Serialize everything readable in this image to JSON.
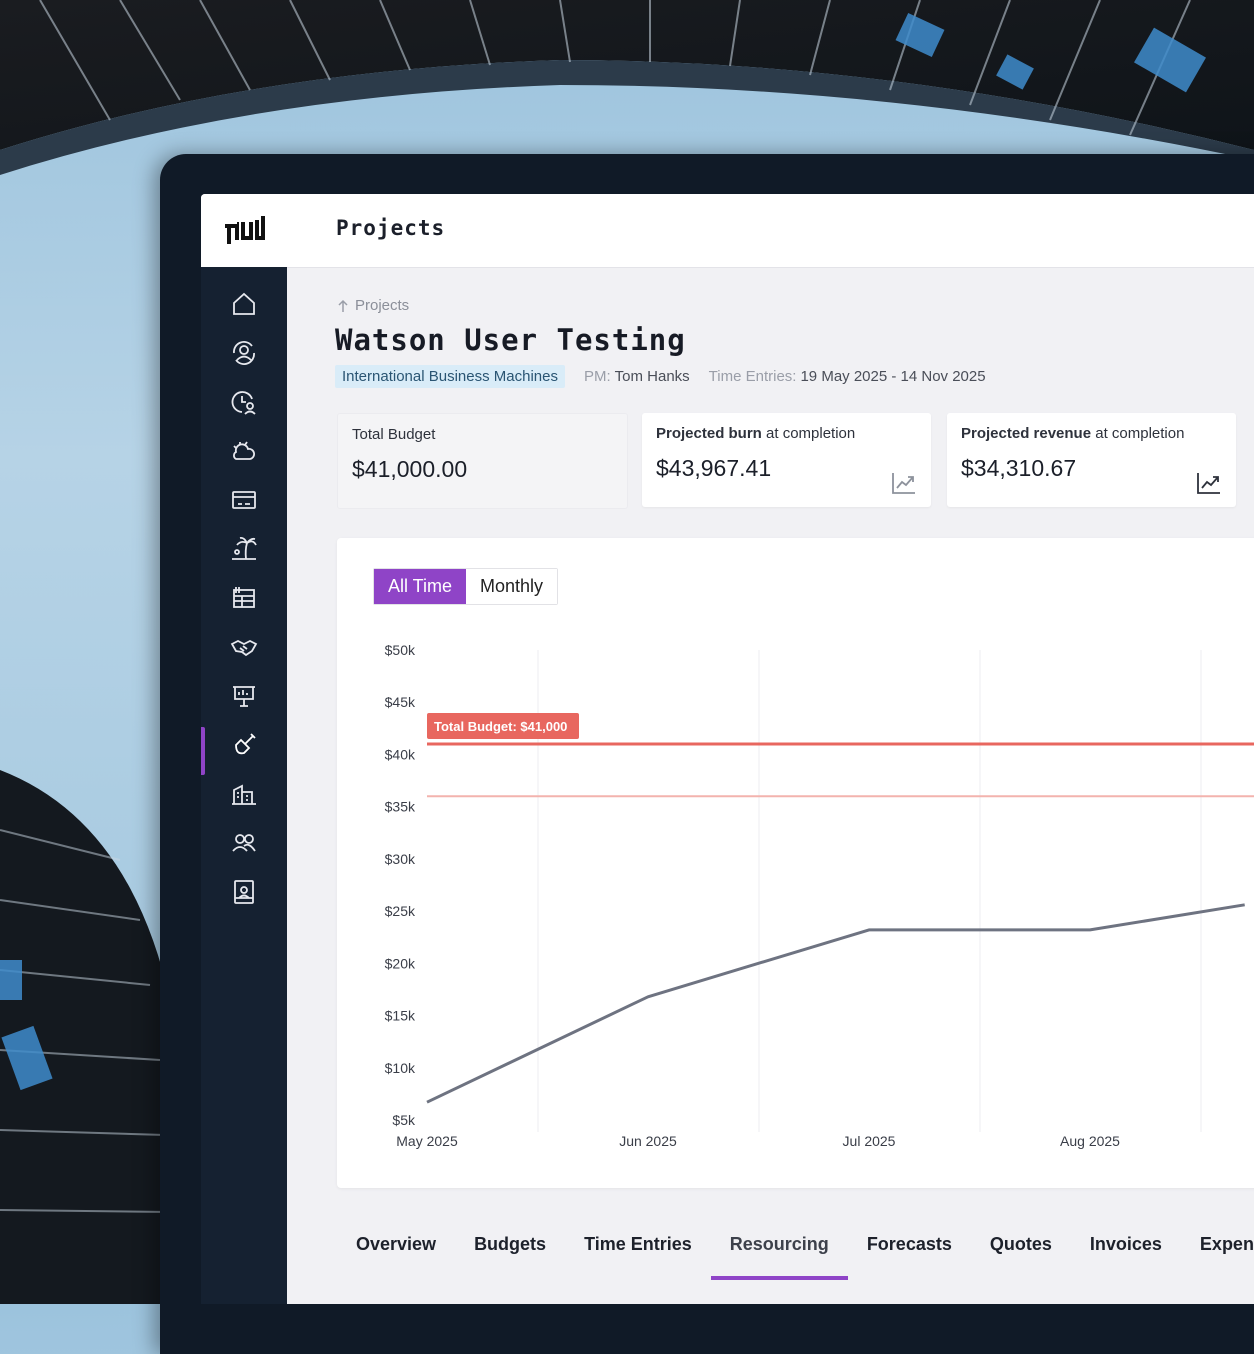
{
  "app": {
    "title": "Projects"
  },
  "sidebar": {
    "items": [
      {
        "icon": "home-icon"
      },
      {
        "icon": "clients-refresh-icon"
      },
      {
        "icon": "time-user-icon"
      },
      {
        "icon": "weather-icon"
      },
      {
        "icon": "card-icon"
      },
      {
        "icon": "holiday-palm-icon"
      },
      {
        "icon": "ledger-icon"
      },
      {
        "icon": "handshake-icon"
      },
      {
        "icon": "presentation-icon"
      },
      {
        "icon": "projects-shovel-icon",
        "active": true
      },
      {
        "icon": "building-icon"
      },
      {
        "icon": "team-icon"
      },
      {
        "icon": "contact-card-icon"
      }
    ]
  },
  "breadcrumb": {
    "label": "Projects"
  },
  "project": {
    "title": "Watson User Testing",
    "client": "International Business Machines",
    "pm_label": "PM:",
    "pm_value": "Tom Hanks",
    "time_label": "Time Entries:",
    "time_value": "19 May 2025 - 14 Nov 2025"
  },
  "cards": {
    "budget": {
      "label": "Total Budget",
      "value": "$41,000.00"
    },
    "burn": {
      "label_bold": "Projected burn",
      "label_rest": " at completion",
      "value": "$43,967.41",
      "icon": "trend-chart-icon"
    },
    "revenue": {
      "label_bold": "Projected revenue",
      "label_rest": " at completion",
      "value": "$34,310.67",
      "icon": "trend-chart-icon"
    }
  },
  "toggle": {
    "all_time": "All Time",
    "monthly": "Monthly"
  },
  "chart_data": {
    "type": "line",
    "y_ticks": [
      "$50k",
      "$45k",
      "$40k",
      "$35k",
      "$30k",
      "$25k",
      "$20k",
      "$15k",
      "$10k",
      "$5k"
    ],
    "ylim": [
      5000,
      50000
    ],
    "x_ticks": [
      "May 2025",
      "Jun 2025",
      "Jul 2025",
      "Aug 2025"
    ],
    "budget_line": {
      "label": "Total Budget: $41,000",
      "value": 41000,
      "color": "#e8675f"
    },
    "reference_line": {
      "value": 36000,
      "color": "#f3b3ae"
    },
    "series": [
      {
        "color": "#6e7381",
        "x": [
          0,
          1,
          2,
          3,
          3.7
        ],
        "values": [
          6700,
          16800,
          23200,
          23200,
          25600
        ]
      }
    ],
    "grid": true
  },
  "tabs": [
    {
      "label": "Overview"
    },
    {
      "label": "Budgets"
    },
    {
      "label": "Time Entries"
    },
    {
      "label": "Resourcing",
      "active": true
    },
    {
      "label": "Forecasts"
    },
    {
      "label": "Quotes"
    },
    {
      "label": "Invoices"
    },
    {
      "label": "Expenses"
    }
  ],
  "colors": {
    "accent": "#8f44c7",
    "sidebar": "#152131",
    "budget": "#e8675f"
  }
}
